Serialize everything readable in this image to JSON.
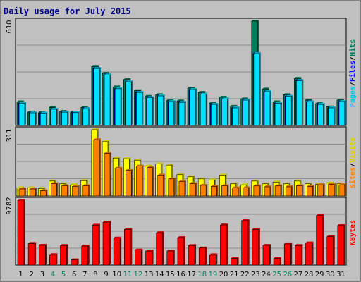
{
  "chart_data": {
    "title": "Daily usage for July 2015",
    "type": "bar",
    "categories": [
      "1",
      "2",
      "3",
      "4",
      "5",
      "6",
      "7",
      "8",
      "9",
      "10",
      "11",
      "12",
      "13",
      "14",
      "15",
      "16",
      "17",
      "18",
      "19",
      "20",
      "21",
      "22",
      "23",
      "24",
      "25",
      "26",
      "27",
      "28",
      "29",
      "30",
      "31"
    ],
    "weekend_days": [
      "4",
      "5",
      "11",
      "12",
      "18",
      "19",
      "25",
      "26"
    ],
    "panels": [
      {
        "max_label": "610",
        "ylim": [
          0,
          610
        ],
        "series": [
          {
            "name": "Hits",
            "color": "#00805c",
            "values": [
              138,
              78,
              75,
              105,
              82,
              78,
              105,
              345,
              305,
              225,
              268,
              203,
              170,
              180,
              145,
              143,
              218,
              193,
              130,
              165,
              112,
              155,
              610,
              213,
              138,
              180,
              275,
              148,
              128,
              108,
              148
            ]
          },
          {
            "name": "Files",
            "color": "#0000ff",
            "values": [
              130,
              74,
              72,
              95,
              78,
              75,
              98,
              333,
              295,
              215,
              255,
              193,
              163,
              173,
              140,
              135,
              210,
              183,
              123,
              155,
              103,
              148,
              420,
              198,
              130,
              170,
              262,
              138,
              123,
              103,
              140
            ]
          },
          {
            "name": "Pages",
            "color": "#00e0ff",
            "values": [
              130,
              74,
              72,
              95,
              78,
              75,
              98,
              333,
              295,
              215,
              255,
              193,
              163,
              173,
              140,
              135,
              210,
              183,
              123,
              155,
              103,
              148,
              420,
              198,
              130,
              170,
              262,
              138,
              123,
              103,
              140
            ]
          }
        ],
        "labels_right": [
          "Pages",
          "Files",
          "Hits"
        ]
      },
      {
        "max_label": "311",
        "ylim": [
          0,
          311
        ],
        "series": [
          {
            "name": "Visits",
            "color": "#ffff00",
            "values": [
              38,
              38,
              35,
              70,
              57,
              52,
              72,
              311,
              255,
              178,
              175,
              168,
              140,
              150,
              145,
              100,
              90,
              80,
              75,
              98,
              57,
              52,
              70,
              57,
              65,
              57,
              70,
              57,
              55,
              60,
              57
            ]
          },
          {
            "name": "Sites",
            "color": "#ff8000",
            "values": [
              33,
              33,
              25,
              58,
              48,
              45,
              48,
              264,
              200,
              130,
              120,
              140,
              133,
              98,
              80,
              68,
              58,
              50,
              45,
              48,
              38,
              38,
              47,
              43,
              47,
              43,
              48,
              45,
              52,
              55,
              52
            ]
          }
        ],
        "labels_right": [
          "Sites",
          "Visits"
        ]
      },
      {
        "max_label": "9782",
        "ylim": [
          0,
          9782
        ],
        "series": [
          {
            "name": "KBytes",
            "color": "#ff0000",
            "values": [
              9782,
              3250,
              2980,
              1570,
              2950,
              780,
              2860,
              6020,
              6470,
              4070,
              5380,
              2260,
              2110,
              4870,
              2120,
              4140,
              2940,
              2570,
              1550,
              6050,
              990,
              6700,
              5380,
              2970,
              990,
              3200,
              2950,
              3330,
              7460,
              4300,
              5960
            ]
          }
        ],
        "labels_right": [
          "KBytes"
        ]
      }
    ]
  }
}
